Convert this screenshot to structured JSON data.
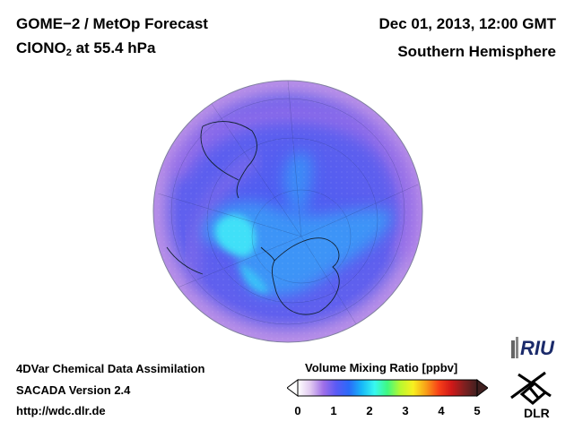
{
  "header": {
    "title_line1": "GOME−2 / MetOp Forecast",
    "species_prefix": "ClONO",
    "species_sub": "2",
    "species_suffix": " at 55.4 hPa",
    "date": "Dec 01, 2013, 12:00 GMT",
    "region": "Southern Hemisphere"
  },
  "footer": {
    "line1": "4DVar Chemical Data Assimilation",
    "line2": "SACADA Version 2.4",
    "line3": "http://wdc.dlr.de"
  },
  "colorbar": {
    "title": "Volume Mixing Ratio [ppbv]",
    "ticks": [
      "0",
      "1",
      "2",
      "3",
      "4",
      "5"
    ],
    "min": 0,
    "max": 5,
    "colors": [
      "#ffffff",
      "#e0c8f0",
      "#9f6fe8",
      "#5a5af5",
      "#2a6af8",
      "#18b8f8",
      "#38f8f0",
      "#40f880",
      "#b8f830",
      "#f8f020",
      "#f8a018",
      "#f84018",
      "#d01818",
      "#802020",
      "#402020"
    ]
  },
  "logos": {
    "riu_text": "RIU",
    "dlr_text": "DLR"
  },
  "map": {
    "projection": "orthographic",
    "hemisphere": "southern"
  }
}
